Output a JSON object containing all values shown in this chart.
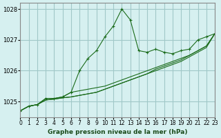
{
  "title": "Graphe pression niveau de la mer (hPa)",
  "background_color": "#d6f0f0",
  "grid_color": "#a0c8c8",
  "line_color": "#1a6b1a",
  "xlim": [
    0,
    23
  ],
  "ylim": [
    1024.5,
    1028.2
  ],
  "yticks": [
    1025,
    1026,
    1027,
    1028
  ],
  "xtick_labels": [
    "0",
    "1",
    "2",
    "3",
    "4",
    "5",
    "6",
    "7",
    "8",
    "9",
    "10",
    "11",
    "12",
    "13",
    "14",
    "15",
    "16",
    "17",
    "18",
    "19",
    "20",
    "21",
    "22",
    "23"
  ],
  "series": [
    [
      1024.7,
      1024.85,
      1024.9,
      1025.1,
      1025.1,
      1025.15,
      1025.3,
      1026.0,
      1026.4,
      1026.65,
      1027.1,
      1027.45,
      1028.0,
      1027.65,
      1026.65,
      1026.6,
      1026.7,
      1026.6,
      1026.55,
      1026.65,
      1026.7,
      1027.0,
      1027.1,
      1027.2
    ],
    [
      1024.7,
      1024.85,
      1024.9,
      1025.1,
      1025.1,
      1025.15,
      1025.3,
      1025.35,
      1025.4,
      1025.45,
      1025.5,
      1025.6,
      1025.7,
      1025.8,
      1025.9,
      1026.0,
      1026.1,
      1026.2,
      1026.3,
      1026.4,
      1026.5,
      1026.65,
      1026.8,
      1027.2
    ],
    [
      1024.7,
      1024.85,
      1024.9,
      1025.05,
      1025.08,
      1025.12,
      1025.15,
      1025.2,
      1025.25,
      1025.3,
      1025.4,
      1025.5,
      1025.6,
      1025.7,
      1025.8,
      1025.9,
      1026.0,
      1026.1,
      1026.2,
      1026.3,
      1026.45,
      1026.6,
      1026.75,
      1027.2
    ],
    [
      1024.7,
      1024.85,
      1024.9,
      1025.05,
      1025.08,
      1025.12,
      1025.15,
      1025.2,
      1025.25,
      1025.3,
      1025.4,
      1025.5,
      1025.6,
      1025.7,
      1025.8,
      1025.9,
      1026.05,
      1026.15,
      1026.25,
      1026.35,
      1026.5,
      1026.65,
      1026.8,
      1027.2
    ]
  ],
  "marker_series": 0,
  "marker_style": "+",
  "marker_size": 4
}
